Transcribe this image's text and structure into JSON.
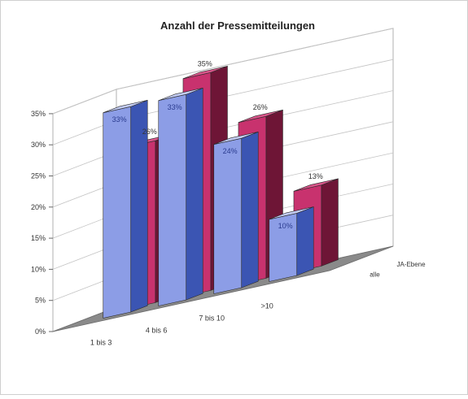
{
  "chart_data": {
    "type": "bar",
    "title": "Anzahl der Pressemitteilungen",
    "categories": [
      "1 bis 3",
      "4 bis 6",
      "7 bis 10",
      ">10"
    ],
    "series": [
      {
        "name": "alle",
        "values": [
          33,
          33,
          24,
          10
        ],
        "labels": [
          "33%",
          "33%",
          "24%",
          "10%"
        ],
        "color": "#8c9de6",
        "side_color": "#3b55b3",
        "top_color": "#c3ccf3"
      },
      {
        "name": "JA-Ebene",
        "values": [
          26,
          35,
          26,
          13
        ],
        "labels": [
          "26%",
          "35%",
          "26%",
          "13%"
        ],
        "color": "#c8326e",
        "side_color": "#6e1536",
        "top_color": "#d9558a"
      }
    ],
    "ylim": [
      0,
      35
    ],
    "yticks": [
      "0%",
      "5%",
      "10%",
      "15%",
      "20%",
      "25%",
      "30%",
      "35%"
    ],
    "grid": true,
    "three_d": true,
    "floor_color": "#8a8a8a",
    "xlabel": "",
    "ylabel": ""
  }
}
